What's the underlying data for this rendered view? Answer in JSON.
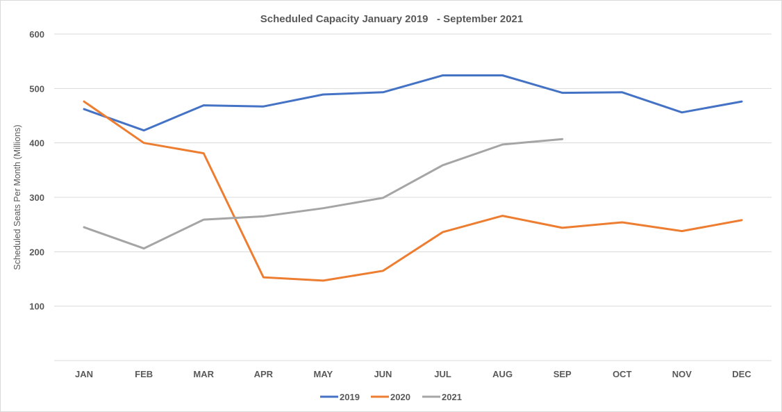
{
  "chart_data": {
    "type": "line",
    "title": "Scheduled Capacity January 2019   - September 2021",
    "xlabel": "",
    "ylabel": "Scheduled Seats Per Month (Millions)",
    "ylim": [
      0,
      600
    ],
    "yticks": [
      100,
      200,
      300,
      400,
      500,
      600
    ],
    "ytick_labels": [
      "100",
      "200",
      "300",
      "400",
      "500",
      "600"
    ],
    "grid": true,
    "legend_position": "bottom",
    "categories": [
      "JAN",
      "FEB",
      "MAR",
      "APR",
      "MAY",
      "JUN",
      "JUL",
      "AUG",
      "SEP",
      "OCT",
      "NOV",
      "DEC"
    ],
    "series": [
      {
        "name": "2019",
        "color": "#4472c4",
        "values": [
          462,
          423,
          469,
          467,
          489,
          493,
          524,
          524,
          492,
          493,
          456,
          476
        ]
      },
      {
        "name": "2020",
        "color": "#ed7d31",
        "values": [
          476,
          400,
          381,
          153,
          147,
          165,
          236,
          266,
          244,
          254,
          238,
          258
        ]
      },
      {
        "name": "2021",
        "color": "#a5a5a5",
        "values": [
          245,
          206,
          259,
          265,
          280,
          299,
          359,
          397,
          407,
          null,
          null,
          null
        ]
      }
    ]
  }
}
